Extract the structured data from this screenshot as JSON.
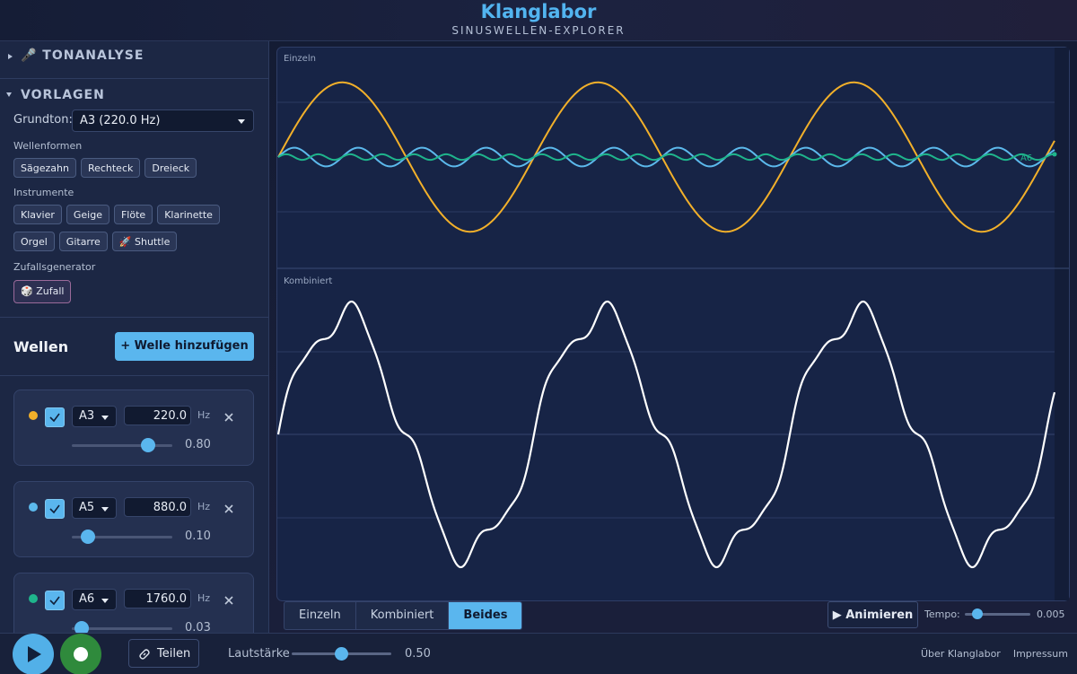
{
  "header": {
    "title": "Klanglabor",
    "subtitle": "SINUSWELLEN-EXPLORER"
  },
  "sidebar": {
    "tonanalyse": "🎤 TONANALYSE",
    "vorlagen": "VORLAGEN",
    "grundton_label": "Grundton:",
    "grundton_value": "A3 (220.0 Hz)",
    "wellenformen": {
      "label": "Wellenformen",
      "buttons": [
        "Sägezahn",
        "Rechteck",
        "Dreieck"
      ]
    },
    "instrumente": {
      "label": "Instrumente",
      "rows": [
        [
          "Klavier",
          "Geige",
          "Flöte",
          "Klarinette"
        ],
        [
          "Orgel",
          "Gitarre",
          "🚀 Shuttle"
        ]
      ]
    },
    "zufall": {
      "label": "Zufallsgenerator",
      "button": "🎲 Zufall"
    }
  },
  "waves": {
    "title": "Wellen",
    "add_button": "+ Welle hinzufügen",
    "items": [
      {
        "note": "A3",
        "frequency": "220.0",
        "unit": "Hz",
        "amplitude": "0.80",
        "color": "#f2b02a",
        "checked": true
      },
      {
        "note": "A5",
        "frequency": "880.0",
        "unit": "Hz",
        "amplitude": "0.10",
        "color": "#5cb9ec",
        "checked": true
      },
      {
        "note": "A6",
        "frequency": "1760.0",
        "unit": "Hz",
        "amplitude": "0.03",
        "color": "#1fb58c",
        "checked": true
      }
    ]
  },
  "plot": {
    "top_label": "Einzeln",
    "bottom_label": "Kombiniert"
  },
  "controls": {
    "tabs": [
      "Einzeln",
      "Kombiniert",
      "Beides"
    ],
    "active_tab": 2,
    "animate_button": "▶ Animieren",
    "tempo_label": "Tempo:",
    "tempo_value": "0.005"
  },
  "footer": {
    "share_button": "Teilen",
    "volume_label": "Lautstärke",
    "volume_value": "0.50",
    "links": [
      "Über Klanglabor",
      "Impressum"
    ]
  }
}
